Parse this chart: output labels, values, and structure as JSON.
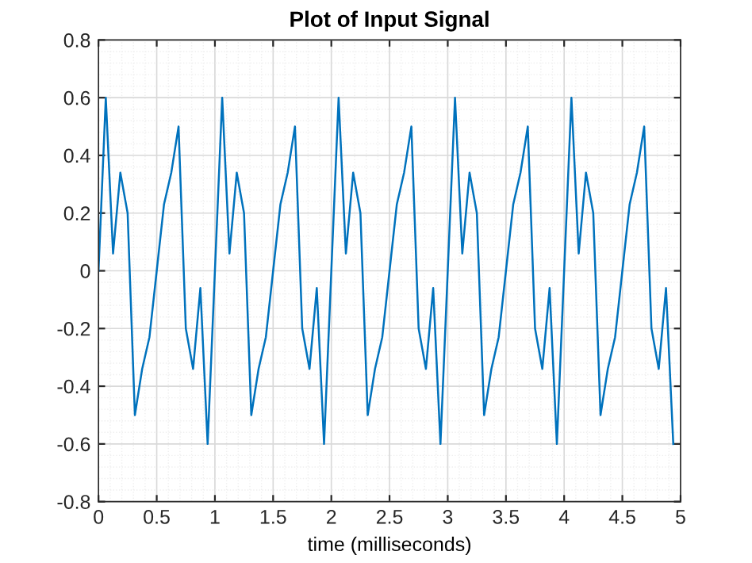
{
  "chart_data": {
    "type": "line",
    "title": "Plot of Input Signal",
    "xlabel": "time (milliseconds)",
    "x": [
      0,
      0.0625,
      0.125,
      0.1875,
      0.25,
      0.3125,
      0.375,
      0.4375,
      0.5,
      0.5625,
      0.625,
      0.6875,
      0.75,
      0.8125,
      0.875,
      0.9375,
      1,
      1.0625,
      1.125,
      1.1875,
      1.25,
      1.3125,
      1.375,
      1.4375,
      1.5,
      1.5625,
      1.625,
      1.6875,
      1.75,
      1.8125,
      1.875,
      1.9375,
      2,
      2.0625,
      2.125,
      2.1875,
      2.25,
      2.3125,
      2.375,
      2.4375,
      2.5,
      2.5625,
      2.625,
      2.6875,
      2.75,
      2.8125,
      2.875,
      2.9375,
      3,
      3.0625,
      3.125,
      3.1875,
      3.25,
      3.3125,
      3.375,
      3.4375,
      3.5,
      3.5625,
      3.625,
      3.6875,
      3.75,
      3.8125,
      3.875,
      3.9375,
      4,
      4.0625,
      4.125,
      4.1875,
      4.25,
      4.3125,
      4.375,
      4.4375,
      4.5,
      4.5625,
      4.625,
      4.6875,
      4.75,
      4.8125,
      4.875,
      4.9375
    ],
    "series": [
      {
        "color": "#0072bd",
        "values": [
          0,
          0.6,
          0.06,
          0.34,
          0.2,
          -0.5,
          -0.34,
          -0.23,
          0,
          0.23,
          0.34,
          0.5,
          -0.2,
          -0.34,
          -0.06,
          -0.6,
          0,
          0.6,
          0.06,
          0.34,
          0.2,
          -0.5,
          -0.34,
          -0.23,
          0,
          0.23,
          0.34,
          0.5,
          -0.2,
          -0.34,
          -0.06,
          -0.6,
          0,
          0.6,
          0.06,
          0.34,
          0.2,
          -0.5,
          -0.34,
          -0.23,
          0,
          0.23,
          0.34,
          0.5,
          -0.2,
          -0.34,
          -0.06,
          -0.6,
          0,
          0.6,
          0.06,
          0.34,
          0.2,
          -0.5,
          -0.34,
          -0.23,
          0,
          0.23,
          0.34,
          0.5,
          -0.2,
          -0.34,
          -0.06,
          -0.6,
          0,
          0.6,
          0.06,
          0.34,
          0.2,
          -0.5,
          -0.34,
          -0.23,
          0,
          0.23,
          0.34,
          0.5,
          -0.2,
          -0.34,
          -0.06,
          -0.6
        ]
      }
    ],
    "xlim": [
      0,
      5
    ],
    "ylim": [
      -0.8,
      0.8
    ],
    "xticks": [
      0,
      0.5,
      1,
      1.5,
      2,
      2.5,
      3,
      3.5,
      4,
      4.5,
      5
    ],
    "yticks": [
      -0.8,
      -0.6,
      -0.4,
      -0.2,
      0,
      0.2,
      0.4,
      0.6,
      0.8
    ],
    "grid": true,
    "marker": "none",
    "line_style": "solid"
  }
}
